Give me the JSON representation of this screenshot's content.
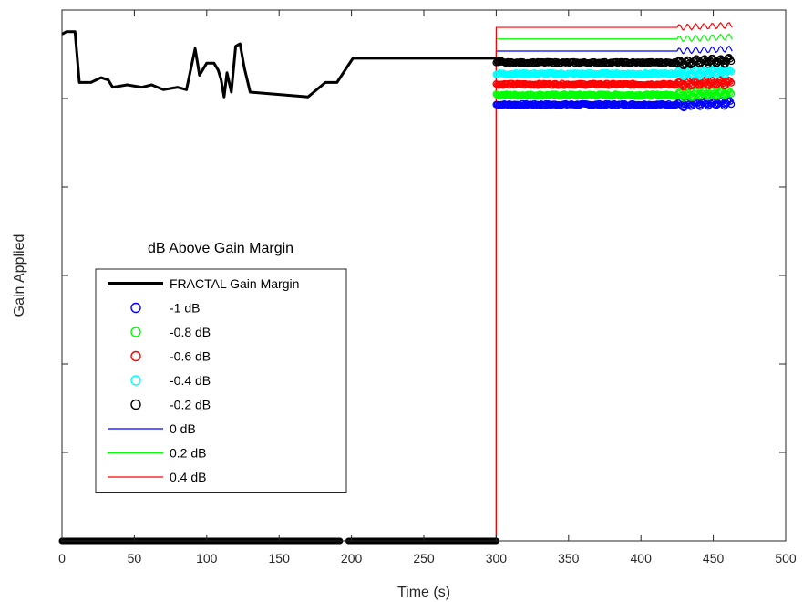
{
  "chart_data": {
    "type": "line",
    "title": "",
    "xlabel": "Time (s)",
    "ylabel": "Gain Applied",
    "xlim": [
      0,
      500
    ],
    "xticks": [
      0,
      50,
      100,
      150,
      200,
      250,
      300,
      350,
      400,
      450,
      500
    ],
    "ylim": [
      0,
      1.1
    ],
    "ytick_labels_shown": false,
    "grid": false,
    "legend": {
      "title": "dB Above Gain Margin",
      "placement": "center-left"
    },
    "series": [
      {
        "name": "FRACTAL Gain Margin",
        "style": "line",
        "color": "#000000",
        "points": [
          [
            0,
            1.05
          ],
          [
            3,
            1.055
          ],
          [
            9,
            1.055
          ],
          [
            12,
            0.95
          ],
          [
            20,
            0.95
          ],
          [
            27,
            0.96
          ],
          [
            32,
            0.955
          ],
          [
            35,
            0.94
          ],
          [
            45,
            0.945
          ],
          [
            55,
            0.94
          ],
          [
            62,
            0.945
          ],
          [
            70,
            0.935
          ],
          [
            80,
            0.94
          ],
          [
            86,
            0.935
          ],
          [
            92,
            1.02
          ],
          [
            95,
            0.965
          ],
          [
            100,
            0.99
          ],
          [
            105,
            0.99
          ],
          [
            108,
            0.975
          ],
          [
            110,
            0.955
          ],
          [
            112,
            0.92
          ],
          [
            114,
            0.97
          ],
          [
            117,
            0.93
          ],
          [
            120,
            1.025
          ],
          [
            123,
            1.03
          ],
          [
            126,
            0.98
          ],
          [
            130,
            0.93
          ],
          [
            150,
            0.925
          ],
          [
            170,
            0.92
          ],
          [
            182,
            0.95
          ],
          [
            190,
            0.95
          ],
          [
            201,
            1.0
          ],
          [
            250,
            1.0
          ],
          [
            300,
            1.0
          ],
          [
            305,
            1.0
          ]
        ]
      },
      {
        "name": "FRACTAL Gain Margin (zero segment)",
        "style": "thick-line",
        "color": "#000000",
        "segments": [
          [
            [
              0,
              0
            ],
            [
              192,
              0
            ]
          ],
          [
            [
              198,
              0
            ],
            [
              300,
              0
            ]
          ]
        ]
      },
      {
        "name": "-1 dB",
        "style": "circle",
        "color": "#0000ff",
        "x_range": [
          300,
          463
        ],
        "level": 0.904
      },
      {
        "name": "-0.8 dB",
        "style": "circle",
        "color": "#00ff00",
        "x_range": [
          300,
          463
        ],
        "level": 0.924
      },
      {
        "name": "-0.6 dB",
        "style": "circle",
        "color": "#ff0000",
        "x_range": [
          300,
          463
        ],
        "level": 0.946
      },
      {
        "name": "-0.4 dB",
        "style": "circle",
        "color": "#00ffff",
        "x_range": [
          300,
          463
        ],
        "level": 0.968
      },
      {
        "name": "-0.2 dB",
        "style": "circle",
        "color": "#000000",
        "x_range": [
          300,
          463
        ],
        "level": 0.991
      },
      {
        "name": "0 dB",
        "style": "line",
        "color": "#0000ff",
        "step_at": 300,
        "x_end": 463,
        "level": 1.015
      },
      {
        "name": "0.2 dB",
        "style": "line",
        "color": "#00ff00",
        "step_at": 300,
        "x_end": 463,
        "level": 1.04
      },
      {
        "name": "0.4 dB",
        "style": "line",
        "color": "#ff0000",
        "step_at": 300,
        "x_end": 463,
        "level": 1.064
      }
    ]
  }
}
